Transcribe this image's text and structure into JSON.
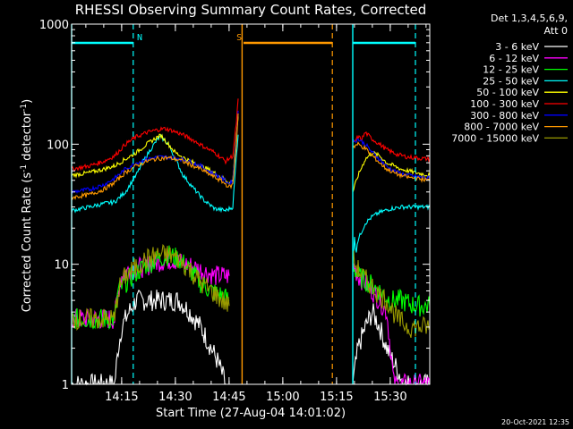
{
  "chart_data": {
    "type": "line",
    "title": "RHESSI Observing Summary Count Rates, Corrected",
    "xlabel": "Start Time (27-Aug-04 14:01:02)",
    "ylabel_main": "Corrected Count Rate (s",
    "ylabel_sup1": "-1",
    "ylabel_mid": " detector",
    "ylabel_sup2": "-1",
    "ylabel_end": ")",
    "yscale": "log",
    "ylim": [
      1,
      1000
    ],
    "xlim_minutes": [
      0,
      100
    ],
    "x_ticks": [
      {
        "label": "14:15",
        "minute": 13.97
      },
      {
        "label": "14:30",
        "minute": 28.97
      },
      {
        "label": "14:45",
        "minute": 43.97
      },
      {
        "label": "15:00",
        "minute": 58.97
      },
      {
        "label": "15:15",
        "minute": 73.97
      },
      {
        "label": "15:30",
        "minute": 88.97
      }
    ],
    "y_ticks": [
      {
        "label": "1",
        "value": 1
      },
      {
        "label": "10",
        "value": 10
      },
      {
        "label": "100",
        "value": 100
      },
      {
        "label": "1000",
        "value": 1000
      }
    ],
    "legend_header": [
      "Det 1,3,4,5,6,9,",
      "Att 0"
    ],
    "legend_position": "right",
    "series": [
      {
        "name": "3 - 6 keV",
        "color": "#ffffff",
        "segments": [
          [
            [
              0,
              1
            ],
            [
              12,
              1
            ],
            [
              13,
              2
            ],
            [
              14,
              3
            ],
            [
              16,
              4
            ],
            [
              18,
              5
            ],
            [
              21,
              5
            ],
            [
              24,
              5
            ],
            [
              27,
              5
            ],
            [
              30,
              5
            ],
            [
              33,
              4
            ],
            [
              36,
              3
            ],
            [
              39,
              2
            ],
            [
              41,
              1.5
            ],
            [
              43,
              1
            ]
          ],
          [
            [
              78.5,
              1
            ],
            [
              80,
              2
            ],
            [
              82,
              3
            ],
            [
              84,
              4
            ],
            [
              86,
              3
            ],
            [
              88,
              2
            ],
            [
              90,
              1.5
            ],
            [
              93,
              1
            ],
            [
              100,
              1
            ]
          ]
        ]
      },
      {
        "name": "6 - 12 keV",
        "color": "#ff00ff",
        "segments": [
          [
            [
              0,
              3.5
            ],
            [
              12,
              3.5
            ],
            [
              13,
              6
            ],
            [
              14,
              8
            ],
            [
              16,
              9
            ],
            [
              20,
              9.5
            ],
            [
              24,
              10.5
            ],
            [
              28,
              11
            ],
            [
              32,
              10
            ],
            [
              36,
              9
            ],
            [
              40,
              8
            ],
            [
              44,
              8
            ]
          ],
          [
            [
              78.5,
              10
            ],
            [
              80,
              8
            ],
            [
              82,
              7
            ],
            [
              84,
              6
            ],
            [
              86,
              5
            ],
            [
              88,
              4
            ],
            [
              90,
              1
            ],
            [
              100,
              1
            ]
          ]
        ]
      },
      {
        "name": "12 - 25 keV",
        "color": "#00ff00",
        "segments": [
          [
            [
              0,
              3.5
            ],
            [
              12,
              3.5
            ],
            [
              13,
              6
            ],
            [
              15,
              7
            ],
            [
              18,
              8.5
            ],
            [
              21,
              10
            ],
            [
              24,
              11
            ],
            [
              27,
              12
            ],
            [
              30,
              11
            ],
            [
              33,
              9
            ],
            [
              36,
              7
            ],
            [
              39,
              6
            ],
            [
              42,
              5.5
            ],
            [
              44,
              5
            ]
          ],
          [
            [
              78.5,
              10
            ],
            [
              80,
              8
            ],
            [
              83,
              7
            ],
            [
              86,
              6
            ],
            [
              89,
              5
            ],
            [
              92,
              5
            ],
            [
              96,
              4.5
            ],
            [
              100,
              4.5
            ]
          ]
        ]
      },
      {
        "name": "25 - 50 keV",
        "color": "#00ffff",
        "segments": [
          [
            [
              0,
              28
            ],
            [
              5,
              30
            ],
            [
              9,
              32
            ],
            [
              12,
              33
            ],
            [
              15,
              40
            ],
            [
              18,
              55
            ],
            [
              20,
              72
            ],
            [
              22,
              90
            ],
            [
              24,
              110
            ],
            [
              25,
              115
            ],
            [
              27,
              100
            ],
            [
              29,
              75
            ],
            [
              31,
              56
            ],
            [
              34,
              43
            ],
            [
              37,
              34
            ],
            [
              40,
              29
            ],
            [
              43,
              28
            ],
            [
              45,
              30
            ],
            [
              46,
              80
            ],
            [
              46.5,
              120
            ]
          ],
          [
            [
              78.5,
              14
            ],
            [
              80,
              16
            ],
            [
              82,
              22
            ],
            [
              84,
              25
            ],
            [
              86,
              27
            ],
            [
              89,
              29
            ],
            [
              92,
              30
            ],
            [
              95,
              30
            ],
            [
              100,
              30
            ]
          ]
        ]
      },
      {
        "name": "50 - 100 keV",
        "color": "#ffff00",
        "segments": [
          [
            [
              0,
              55
            ],
            [
              5,
              58
            ],
            [
              9,
              62
            ],
            [
              12,
              66
            ],
            [
              15,
              75
            ],
            [
              18,
              85
            ],
            [
              21,
              100
            ],
            [
              24,
              115
            ],
            [
              25,
              118
            ],
            [
              27,
              100
            ],
            [
              29,
              85
            ],
            [
              32,
              75
            ],
            [
              35,
              68
            ],
            [
              38,
              62
            ],
            [
              41,
              55
            ],
            [
              44,
              48
            ],
            [
              45,
              50
            ],
            [
              46,
              120
            ],
            [
              46.5,
              170
            ]
          ],
          [
            [
              78.5,
              40
            ],
            [
              80,
              55
            ],
            [
              82,
              75
            ],
            [
              84,
              85
            ],
            [
              86,
              80
            ],
            [
              88,
              70
            ],
            [
              92,
              62
            ],
            [
              96,
              58
            ],
            [
              100,
              55
            ]
          ]
        ]
      },
      {
        "name": "100 - 300 keV",
        "color": "#ff0000",
        "segments": [
          [
            [
              0,
              62
            ],
            [
              5,
              66
            ],
            [
              9,
              72
            ],
            [
              12,
              80
            ],
            [
              15,
              100
            ],
            [
              18,
              115
            ],
            [
              21,
              125
            ],
            [
              24,
              132
            ],
            [
              26,
              135
            ],
            [
              28,
              130
            ],
            [
              31,
              120
            ],
            [
              34,
              108
            ],
            [
              37,
              95
            ],
            [
              40,
              85
            ],
            [
              43,
              72
            ],
            [
              45,
              80
            ],
            [
              46,
              150
            ],
            [
              46.5,
              240
            ]
          ],
          [
            [
              78.5,
              100
            ],
            [
              80,
              115
            ],
            [
              81,
              110
            ],
            [
              82,
              125
            ],
            [
              84,
              110
            ],
            [
              86,
              100
            ],
            [
              88,
              90
            ],
            [
              91,
              82
            ],
            [
              94,
              78
            ],
            [
              100,
              75
            ]
          ]
        ]
      },
      {
        "name": "300 - 800 keV",
        "color": "#0000ff",
        "segments": [
          [
            [
              0,
              40
            ],
            [
              5,
              42
            ],
            [
              9,
              46
            ],
            [
              12,
              52
            ],
            [
              15,
              62
            ],
            [
              18,
              70
            ],
            [
              21,
              75
            ],
            [
              24,
              78
            ],
            [
              27,
              78
            ],
            [
              30,
              76
            ],
            [
              33,
              72
            ],
            [
              36,
              66
            ],
            [
              39,
              58
            ],
            [
              42,
              52
            ],
            [
              44,
              47
            ],
            [
              45,
              50
            ],
            [
              46,
              110
            ],
            [
              46.5,
              190
            ]
          ],
          [
            [
              78.5,
              105
            ],
            [
              80,
              110
            ],
            [
              82,
              100
            ],
            [
              84,
              85
            ],
            [
              86,
              75
            ],
            [
              88,
              65
            ],
            [
              91,
              58
            ],
            [
              94,
              55
            ],
            [
              100,
              52
            ]
          ]
        ]
      },
      {
        "name": "800 - 7000 keV",
        "color": "#ff9900",
        "segments": [
          [
            [
              0,
              36
            ],
            [
              5,
              38
            ],
            [
              9,
              42
            ],
            [
              12,
              48
            ],
            [
              15,
              58
            ],
            [
              18,
              66
            ],
            [
              21,
              72
            ],
            [
              24,
              76
            ],
            [
              27,
              77
            ],
            [
              30,
              74
            ],
            [
              33,
              68
            ],
            [
              36,
              62
            ],
            [
              39,
              55
            ],
            [
              42,
              49
            ],
            [
              44,
              44
            ],
            [
              45,
              46
            ],
            [
              46,
              100
            ],
            [
              46.5,
              180
            ]
          ],
          [
            [
              78.5,
              95
            ],
            [
              80,
              100
            ],
            [
              82,
              92
            ],
            [
              84,
              80
            ],
            [
              86,
              70
            ],
            [
              88,
              62
            ],
            [
              91,
              56
            ],
            [
              94,
              53
            ],
            [
              100,
              50
            ]
          ]
        ]
      },
      {
        "name": "7000 - 15000 keV",
        "color": "#999900",
        "segments": [
          [
            [
              0,
              3.5
            ],
            [
              12,
              3.5
            ],
            [
              13,
              6
            ],
            [
              15,
              8
            ],
            [
              18,
              9.5
            ],
            [
              21,
              11
            ],
            [
              24,
              12
            ],
            [
              27,
              12
            ],
            [
              30,
              11
            ],
            [
              33,
              9
            ],
            [
              36,
              7
            ],
            [
              39,
              6
            ],
            [
              42,
              5
            ],
            [
              44,
              4.5
            ]
          ],
          [
            [
              78.5,
              11
            ],
            [
              80,
              9
            ],
            [
              82,
              7.5
            ],
            [
              84,
              6.5
            ],
            [
              86,
              5.5
            ],
            [
              88,
              5
            ],
            [
              91,
              3.5
            ],
            [
              94,
              3
            ],
            [
              97,
              3
            ],
            [
              100,
              3
            ]
          ]
        ]
      }
    ],
    "annotations": [
      {
        "text": "N",
        "minute": 19,
        "color": "#00ffff"
      },
      {
        "text": "S",
        "minute": 46.8,
        "color": "#ff9900"
      }
    ],
    "state_bars": [
      {
        "name": "night-bar",
        "color": "#00ffff",
        "ranges": [
          [
            0,
            17.2
          ],
          [
            78.5,
            96
          ]
        ]
      },
      {
        "name": "saa-bar",
        "color": "#ff9900",
        "ranges": [
          [
            48,
            72.8
          ]
        ]
      }
    ],
    "solid_markers": [
      {
        "name": "cyan-solid",
        "minute": 0,
        "color": "#00ffff"
      },
      {
        "name": "orange-solid",
        "minute": 47.6,
        "color": "#ff9900"
      },
      {
        "name": "cyan-solid",
        "minute": 78.5,
        "color": "#00ffff"
      }
    ],
    "dashed_markers": [
      {
        "name": "cyan-dashed",
        "minute": 17.2,
        "color": "#00ffff"
      },
      {
        "name": "orange-dashed",
        "minute": 72.8,
        "color": "#ff9900"
      },
      {
        "name": "cyan-dashed",
        "minute": 96,
        "color": "#00ffff"
      }
    ]
  },
  "footer_date": "20-Oct-2021 12:35"
}
